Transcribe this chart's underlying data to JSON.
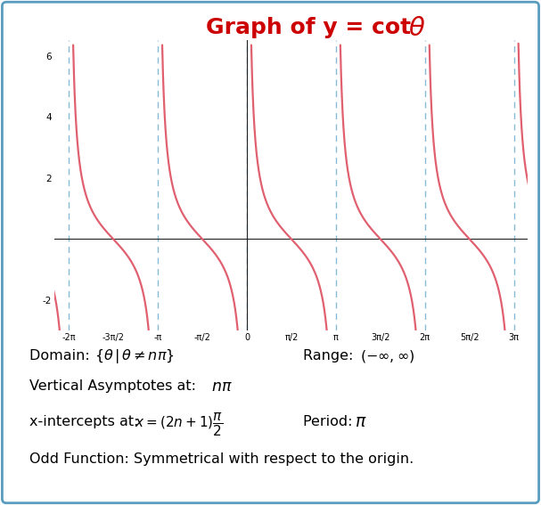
{
  "title_color": "#cc0000",
  "title_fontsize": 18,
  "bg_color": "#ffffff",
  "border_color": "#5a9cbf",
  "curve_color": "#e06070",
  "asymptote_color": "#88bcd6",
  "asymptote_lw": 1.0,
  "curve_lw": 1.6,
  "xlim": [
    -6.8,
    9.9
  ],
  "ylim": [
    -3.0,
    6.5
  ],
  "yticks": [
    -2,
    2,
    4,
    6
  ],
  "xtick_labels": [
    "-2π",
    "-3π/2",
    "-π",
    "-π/2",
    "0",
    "π/2",
    "π",
    "3π/2",
    "2π",
    "5π/2",
    "3π"
  ],
  "xtick_values": [
    -6.283185,
    -4.712389,
    -3.141593,
    -1.570796,
    0,
    1.570796,
    3.141593,
    4.712389,
    6.283185,
    7.853982,
    9.424778
  ],
  "asymptote_positions": [
    -6.283185,
    -3.141593,
    0.0,
    3.141593,
    6.283185,
    9.424778
  ],
  "annotation_fontsize": 11.5
}
